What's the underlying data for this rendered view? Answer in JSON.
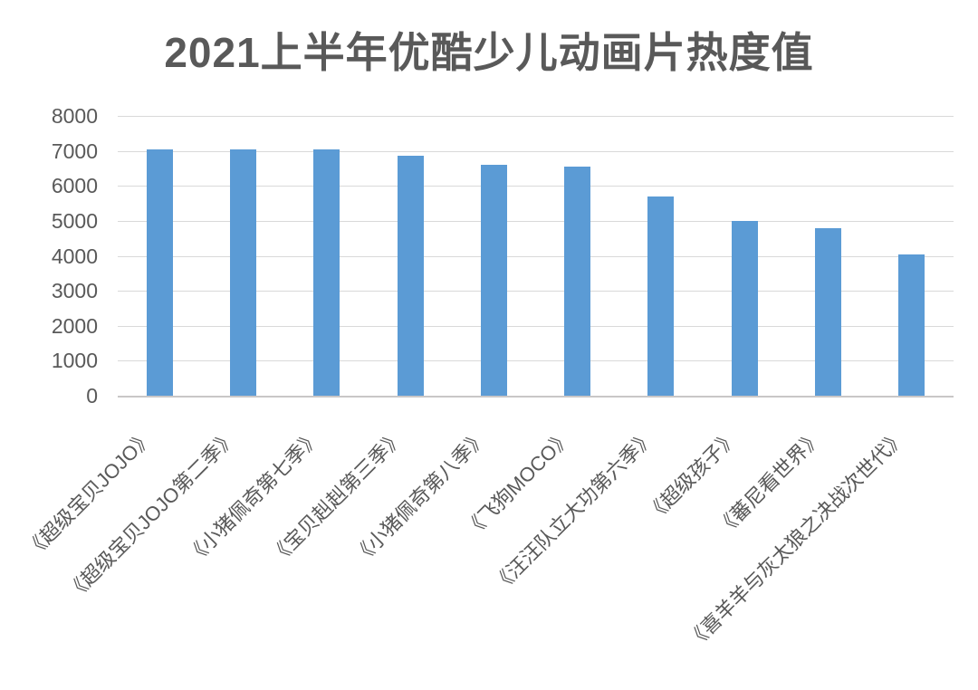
{
  "chart_data": {
    "type": "bar",
    "title": "2021上半年优酷少儿动画片热度值",
    "categories": [
      "《超级宝贝JOJO》",
      "《超级宝贝JOJO第二季》",
      "《小猪佩奇第七季》",
      "《宝贝赳赳第三季》",
      "《小猪佩奇第八季》",
      "《飞狗MOCO》",
      "《汪汪队立大功第六季》",
      "《超级孩子》",
      "《蕃尼看世界》",
      "《喜羊羊与灰太狼之决战次世代》"
    ],
    "values": [
      7050,
      7050,
      7050,
      6870,
      6600,
      6550,
      5700,
      5000,
      4800,
      4050
    ],
    "xlabel": "",
    "ylabel": "",
    "ylim": [
      0,
      8000
    ],
    "ytick_step": 1000,
    "yticks": [
      0,
      1000,
      2000,
      3000,
      4000,
      5000,
      6000,
      7000,
      8000
    ],
    "grid": true,
    "legend_position": "none",
    "bar_color": "#5b9bd5",
    "gridline_color": "#d9d9d9",
    "axis_line_color": "#c9c7c7",
    "text_color": "#595959",
    "background_color": "#ffffff"
  }
}
